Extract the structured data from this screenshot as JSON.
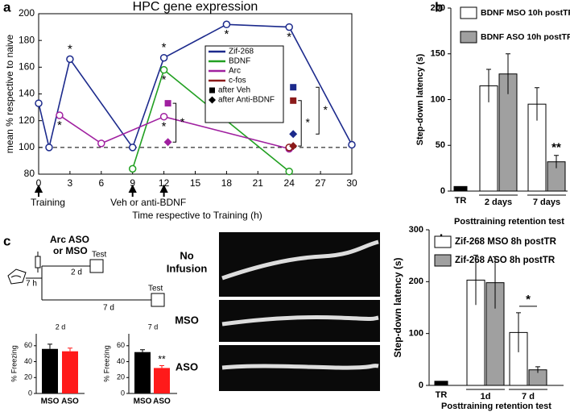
{
  "panels": [
    "a",
    "b",
    "c",
    "d"
  ],
  "chart_data": [
    {
      "type": "line",
      "title": "HPC gene expression",
      "xlabel": "Time respective to Training (h)",
      "ylabel": "mean % respective to naive",
      "xlim": [
        0,
        30
      ],
      "xticks": [
        0,
        3,
        6,
        9,
        12,
        15,
        18,
        21,
        24,
        27,
        30
      ],
      "ylim": [
        80,
        200
      ],
      "yticks": [
        80,
        100,
        120,
        140,
        160,
        180,
        200
      ],
      "reference_y": 100,
      "series": [
        {
          "name": "Zif-268",
          "color": "#1c2a8c",
          "x": [
            0,
            1,
            3,
            9,
            12,
            18,
            24,
            30
          ],
          "values": [
            133,
            100,
            166,
            100,
            167,
            192,
            190,
            102
          ],
          "significance": [
            null,
            null,
            "*",
            null,
            "*",
            "*",
            "*",
            null
          ]
        },
        {
          "name": "BDNF",
          "color": "#22a022",
          "x": [
            9,
            12,
            24
          ],
          "values": [
            84,
            158,
            82
          ],
          "significance": [
            null,
            "*",
            null
          ]
        },
        {
          "name": "Arc",
          "color": "#a020a0",
          "x": [
            2,
            6,
            12,
            24
          ],
          "values": [
            124,
            103,
            123,
            99
          ],
          "significance": [
            "*",
            null,
            "*",
            null
          ]
        },
        {
          "name": "c-fos",
          "color": "#8b1a1a",
          "x": [
            24
          ],
          "values": [
            100
          ],
          "significance": [
            null
          ]
        }
      ],
      "marker_legend": [
        "after Veh",
        "after Anti-BDNF"
      ],
      "treated": [
        {
          "x": 12,
          "color": "#a020a0",
          "veh": 133,
          "anti": 104,
          "label": "*"
        },
        {
          "x": 24,
          "color": "#8b1a1a",
          "veh": 135,
          "anti": 101,
          "label": "*"
        },
        {
          "x": 24,
          "color": "#1c2a8c",
          "veh": 145,
          "anti": 110,
          "label": "*"
        }
      ],
      "arrow_x": [
        0,
        9,
        12
      ],
      "arrow_labels": [
        "Training",
        "Veh or anti-BDNF"
      ]
    },
    {
      "type": "grouped_bar",
      "ylabel": "Step-down latency (s)",
      "xlabel": "Posttraining retention test",
      "ylim": [
        0,
        200
      ],
      "yticks": [
        0,
        50,
        100,
        150,
        200
      ],
      "control": {
        "label": "TR",
        "value": 5,
        "color": "#000000"
      },
      "categories": [
        "2 days",
        "7 days"
      ],
      "series": [
        {
          "name": "BDNF MSO 10h postTR",
          "color": "#ffffff",
          "values": [
            115,
            95
          ],
          "errors": [
            18,
            18
          ],
          "significance": [
            null,
            null
          ]
        },
        {
          "name": "BDNF ASO 10h postTR",
          "color": "#a0a0a0",
          "values": [
            128,
            32
          ],
          "errors": [
            22,
            7
          ],
          "significance": [
            null,
            "**"
          ]
        }
      ]
    },
    {
      "type": "bar",
      "title": "2 d",
      "ylabel": "% Freezing",
      "ylim": [
        0,
        75
      ],
      "yticks": [
        0,
        20,
        40,
        60
      ],
      "categories": [
        "MSO",
        "ASO"
      ],
      "colors": [
        "#000000",
        "#ff1a1a"
      ],
      "values": [
        56,
        53
      ],
      "errors": [
        6,
        4
      ],
      "significance": [
        null,
        null
      ]
    },
    {
      "type": "bar",
      "title": "7 d",
      "ylabel": "% Freezing",
      "ylim": [
        0,
        75
      ],
      "yticks": [
        0,
        20,
        40,
        60
      ],
      "categories": [
        "MSO",
        "ASO"
      ],
      "colors": [
        "#000000",
        "#ff1a1a"
      ],
      "values": [
        52,
        32
      ],
      "errors": [
        3,
        3
      ],
      "significance": [
        null,
        "**"
      ]
    },
    {
      "type": "grouped_bar",
      "ylabel": "Step-down latency (s)",
      "xlabel": "Posttraining retention test",
      "ylim": [
        0,
        300
      ],
      "yticks": [
        0,
        100,
        200,
        300
      ],
      "control": {
        "label": "TR",
        "value": 8,
        "color": "#000000"
      },
      "categories": [
        "1d",
        "7 d"
      ],
      "series": [
        {
          "name": "Zif-268 MSO 8h postTR",
          "color": "#ffffff",
          "values": [
            203,
            102
          ],
          "errors": [
            48,
            38
          ],
          "significance": [
            null,
            null
          ]
        },
        {
          "name": "Zif-268 ASO 8h postTR",
          "color": "#a0a0a0",
          "values": [
            198,
            30
          ],
          "errors": [
            50,
            6
          ],
          "significance": [
            null,
            "*"
          ]
        }
      ]
    }
  ],
  "schematic": {
    "title_lines": [
      "Arc ASO",
      "or MSO"
    ],
    "short_test": "Test",
    "short_delay": "2 d",
    "infusion_delay": "7 h",
    "long_delay": "7 d",
    "long_test": "Test"
  },
  "images": {
    "labels": [
      [
        "No",
        "Infusion"
      ],
      [
        "MSO"
      ],
      [
        "ASO"
      ]
    ]
  }
}
